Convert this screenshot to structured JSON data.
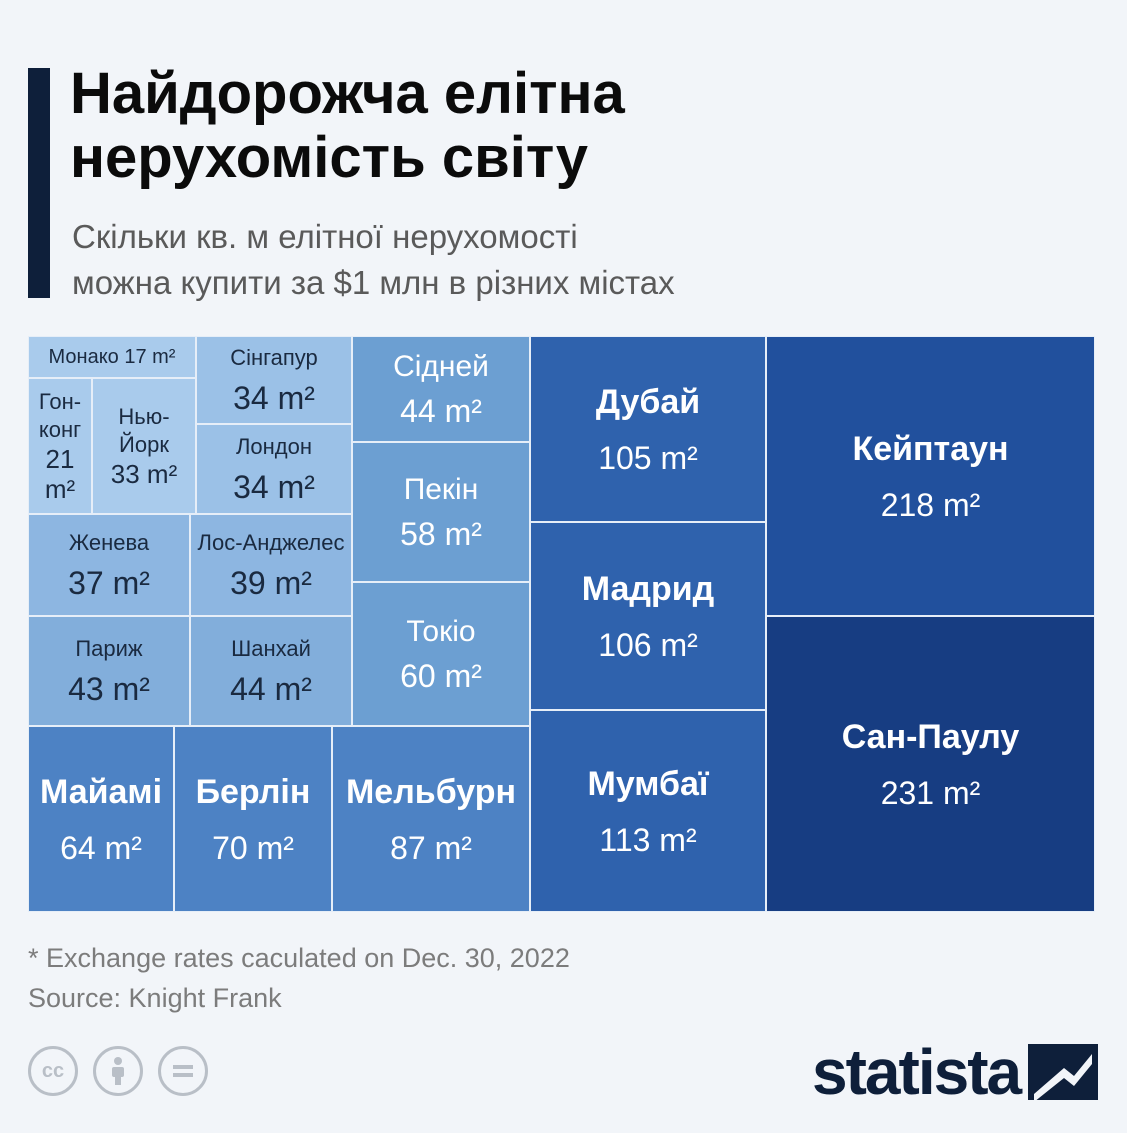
{
  "header": {
    "title_line1": "Найдорожча елітна",
    "title_line2": "нерухомість світу",
    "subtitle_line1": "Скільки кв. м елітної нерухомості",
    "subtitle_line2": "можна купити за $1 млн в різних містах"
  },
  "chart_data": {
    "type": "treemap",
    "unit": "m²",
    "items": [
      {
        "city": "Монако",
        "value": 17,
        "label": "Монако 17 m²",
        "color": "#a9cbec"
      },
      {
        "city": "Гон-конг",
        "value": 21,
        "lines": [
          "Гон-",
          "конг",
          "21",
          "m²"
        ],
        "color": "#a9cbec"
      },
      {
        "city": "Нью-Йорк",
        "value": 33,
        "lines": [
          "Нью-",
          "Йорк",
          "33 m²"
        ],
        "color": "#a9cbec"
      },
      {
        "city": "Сінгапур",
        "value": 34,
        "label": "34 m²",
        "color": "#9bc1e7"
      },
      {
        "city": "Лондон",
        "value": 34,
        "label": "34 m²",
        "color": "#9bc1e7"
      },
      {
        "city": "Женева",
        "value": 37,
        "label": "37 m²",
        "color": "#8db6e1"
      },
      {
        "city": "Лос-Анджелес",
        "value": 39,
        "label": "39 m²",
        "color": "#8db6e1"
      },
      {
        "city": "Париж",
        "value": 43,
        "label": "43 m²",
        "color": "#82aedb"
      },
      {
        "city": "Шанхай",
        "value": 44,
        "label": "44 m²",
        "color": "#82aedb"
      },
      {
        "city": "Сідней",
        "value": 44,
        "label": "44 m²",
        "color": "#6c9fd2"
      },
      {
        "city": "Пекін",
        "value": 58,
        "label": "58 m²",
        "color": "#6c9fd2"
      },
      {
        "city": "Токіо",
        "value": 60,
        "label": "60 m²",
        "color": "#6c9fd2"
      },
      {
        "city": "Майамі",
        "value": 64,
        "label": "64 m²",
        "color": "#4d82c4"
      },
      {
        "city": "Берлін",
        "value": 70,
        "label": "70 m²",
        "color": "#4d82c4"
      },
      {
        "city": "Мельбурн",
        "value": 87,
        "label": "87 m²",
        "color": "#4d82c4"
      },
      {
        "city": "Дубай",
        "value": 105,
        "label": "105 m²",
        "color": "#2f62ad"
      },
      {
        "city": "Мадрид",
        "value": 106,
        "label": "106 m²",
        "color": "#2f62ad"
      },
      {
        "city": "Мумбаї",
        "value": 113,
        "label": "113 m²",
        "color": "#2f62ad"
      },
      {
        "city": "Кейптаун",
        "value": 218,
        "label": "218 m²",
        "color": "#21509d"
      },
      {
        "city": "Сан-Паулу",
        "value": 231,
        "label": "231 m²",
        "color": "#173d82"
      }
    ]
  },
  "footer": {
    "note": "* Exchange rates caculated on Dec. 30, 2022",
    "source": "Source: Knight Frank",
    "cc_icons": [
      "cc-icon",
      "by-icon",
      "nd-icon"
    ],
    "logo_text": "statista"
  }
}
